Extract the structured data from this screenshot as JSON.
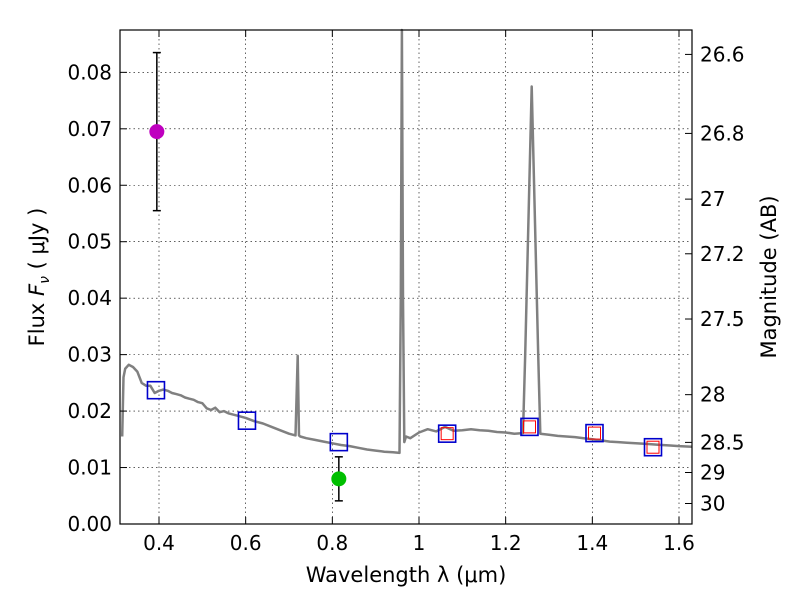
{
  "chart_data": {
    "type": "scatter",
    "xlabel": "Wavelength  λ (μm)",
    "ylabel_prefix": "Flux  ",
    "ylabel_symbol": "F",
    "ylabel_sub": "ν",
    "ylabel_suffix": "  ( μJy )",
    "y2label": "Magnitude (AB)",
    "xlim": [
      0.31,
      1.63
    ],
    "ylim": [
      0.0,
      0.0875
    ],
    "grid": true,
    "x_ticks": [
      0.4,
      0.6,
      0.8,
      1.0,
      1.2,
      1.4,
      1.6
    ],
    "x_tick_labels": [
      "0.4",
      "0.6",
      "0.8",
      "1",
      "1.2",
      "1.4",
      "1.6"
    ],
    "y_ticks": [
      0.0,
      0.01,
      0.02,
      0.03,
      0.04,
      0.05,
      0.06,
      0.07,
      0.08
    ],
    "y_tick_labels": [
      "0.00",
      "0.01",
      "0.02",
      "0.03",
      "0.04",
      "0.05",
      "0.06",
      "0.07",
      "0.08"
    ],
    "mag_ticks": [
      26.6,
      26.8,
      27,
      27.2,
      27.5,
      28,
      28.5,
      29,
      30
    ],
    "mag_tick_labels": [
      "26.6",
      "26.8",
      "27",
      "27.2",
      "27.5",
      "28",
      "28.5",
      "29",
      "30"
    ],
    "sed_model": {
      "name": "SED template",
      "color": "#808080",
      "x": [
        0.315,
        0.318,
        0.322,
        0.33,
        0.34,
        0.35,
        0.36,
        0.37,
        0.38,
        0.39,
        0.4,
        0.41,
        0.42,
        0.43,
        0.44,
        0.45,
        0.46,
        0.47,
        0.48,
        0.49,
        0.5,
        0.51,
        0.52,
        0.53,
        0.54,
        0.55,
        0.56,
        0.58,
        0.6,
        0.62,
        0.64,
        0.66,
        0.68,
        0.7,
        0.715,
        0.72,
        0.723,
        0.726,
        0.74,
        0.76,
        0.78,
        0.8,
        0.82,
        0.84,
        0.86,
        0.88,
        0.9,
        0.92,
        0.94,
        0.955,
        0.958,
        0.9605,
        0.963,
        0.966,
        0.97,
        0.98,
        1.0,
        1.02,
        1.04,
        1.06,
        1.08,
        1.1,
        1.12,
        1.14,
        1.16,
        1.18,
        1.2,
        1.22,
        1.24,
        1.245,
        1.26,
        1.275,
        1.28,
        1.3,
        1.32,
        1.34,
        1.36,
        1.38,
        1.4,
        1.42,
        1.44,
        1.46,
        1.48,
        1.5,
        1.52,
        1.54,
        1.56,
        1.58,
        1.6,
        1.63
      ],
      "y": [
        0.0155,
        0.026,
        0.0275,
        0.0282,
        0.0278,
        0.027,
        0.025,
        0.0245,
        0.0245,
        0.0232,
        0.0236,
        0.0238,
        0.0236,
        0.0232,
        0.023,
        0.0228,
        0.0224,
        0.0222,
        0.022,
        0.0216,
        0.0214,
        0.0205,
        0.0202,
        0.0206,
        0.0198,
        0.02,
        0.0196,
        0.0192,
        0.0188,
        0.0182,
        0.0178,
        0.0172,
        0.0166,
        0.016,
        0.0157,
        0.0298,
        0.0157,
        0.0155,
        0.0152,
        0.0149,
        0.0146,
        0.0143,
        0.014,
        0.0138,
        0.0135,
        0.0132,
        0.013,
        0.0128,
        0.0127,
        0.0126,
        0.04,
        0.0875,
        0.04,
        0.0145,
        0.0155,
        0.0152,
        0.0162,
        0.0168,
        0.0164,
        0.0172,
        0.0165,
        0.0166,
        0.0168,
        0.0166,
        0.0165,
        0.0163,
        0.0162,
        0.016,
        0.0161,
        0.03,
        0.0775,
        0.03,
        0.016,
        0.0158,
        0.0156,
        0.0155,
        0.0154,
        0.0152,
        0.015,
        0.0148,
        0.0146,
        0.0145,
        0.0144,
        0.0143,
        0.0142,
        0.0141,
        0.014,
        0.0139,
        0.0138,
        0.0137
      ]
    },
    "observed_points": [
      {
        "name": "magenta-detection",
        "x": 0.395,
        "y": 0.0695,
        "yerr_low": 0.0555,
        "yerr_high": 0.0835,
        "color": "#bf00bf"
      },
      {
        "name": "green-detection",
        "x": 0.815,
        "y": 0.008,
        "yerr_low": 0.0041,
        "yerr_high": 0.0119,
        "color": "#00bf00"
      }
    ],
    "model_photometry": [
      {
        "x": 0.393,
        "y": 0.0237,
        "inner": false
      },
      {
        "x": 0.603,
        "y": 0.0183,
        "inner": false
      },
      {
        "x": 0.815,
        "y": 0.0145,
        "inner": false
      },
      {
        "x": 1.065,
        "y": 0.016,
        "inner": true
      },
      {
        "x": 1.255,
        "y": 0.0172,
        "inner": true
      },
      {
        "x": 1.405,
        "y": 0.0161,
        "inner": true
      },
      {
        "x": 1.54,
        "y": 0.0136,
        "inner": true
      }
    ],
    "marker_colors": {
      "outer": "#0000cc",
      "inner": "#ff0000",
      "errorbar": "#000000"
    }
  }
}
